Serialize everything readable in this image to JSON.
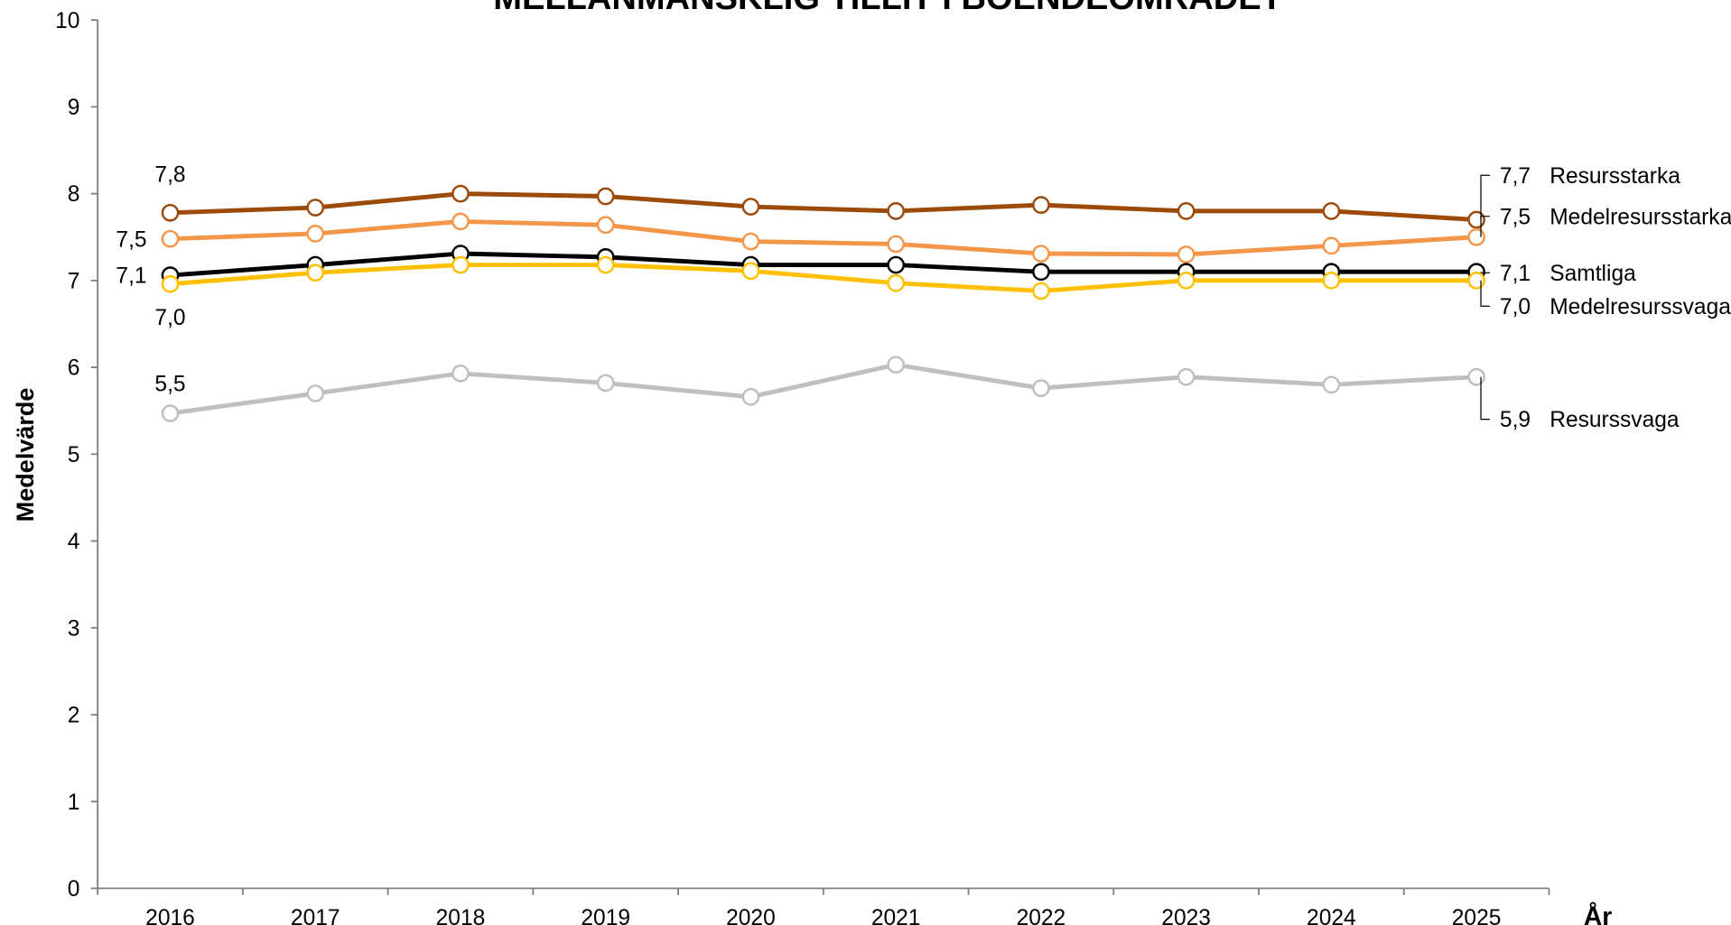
{
  "chart_data": {
    "type": "line",
    "title": "MELLANMÄNSKLIG TILLIT I BOENDEOMRÅDET",
    "x_label": "År",
    "y_label": "Medelvärde",
    "categories": [
      "2016",
      "2017",
      "2018",
      "2019",
      "2020",
      "2021",
      "2022",
      "2023",
      "2024",
      "2025"
    ],
    "ylim": [
      0,
      10
    ],
    "yticks": [
      0,
      1,
      2,
      3,
      4,
      5,
      6,
      7,
      8,
      9,
      10
    ],
    "series": [
      {
        "name": "Resursstarka",
        "color": "#9c4a0a",
        "values": [
          7.78,
          7.84,
          8.0,
          7.97,
          7.85,
          7.8,
          7.87,
          7.8,
          7.8,
          7.7
        ],
        "value_labels": [
          "7,8",
          null,
          null,
          null,
          null,
          null,
          null,
          null,
          null,
          "7,7"
        ]
      },
      {
        "name": "Medelresursstarka",
        "color": "#f4964a",
        "values": [
          7.48,
          7.54,
          7.68,
          7.64,
          7.45,
          7.42,
          7.31,
          7.3,
          7.4,
          7.5
        ],
        "value_labels": [
          "7,5",
          null,
          null,
          null,
          null,
          null,
          null,
          null,
          null,
          "7,5"
        ]
      },
      {
        "name": "Samtliga",
        "color": "#000000",
        "values": [
          7.06,
          7.18,
          7.31,
          7.27,
          7.18,
          7.18,
          7.1,
          7.1,
          7.1,
          7.1
        ],
        "value_labels": [
          "7,1",
          null,
          null,
          null,
          null,
          null,
          null,
          null,
          null,
          "7,1"
        ]
      },
      {
        "name": "Medelresurssvaga",
        "color": "#ffc000",
        "values": [
          6.96,
          7.09,
          7.18,
          7.18,
          7.11,
          6.97,
          6.88,
          7.0,
          7.0,
          7.0
        ],
        "value_labels": [
          "7,0",
          null,
          null,
          null,
          null,
          null,
          null,
          null,
          null,
          "7,0"
        ]
      },
      {
        "name": "Resurssvaga",
        "color": "#bfbfbf",
        "values": [
          5.47,
          5.7,
          5.93,
          5.82,
          5.66,
          6.03,
          5.76,
          5.89,
          5.8,
          5.89
        ],
        "value_labels": [
          "5,5",
          null,
          null,
          null,
          null,
          null,
          null,
          null,
          null,
          "5,9"
        ]
      }
    ]
  }
}
